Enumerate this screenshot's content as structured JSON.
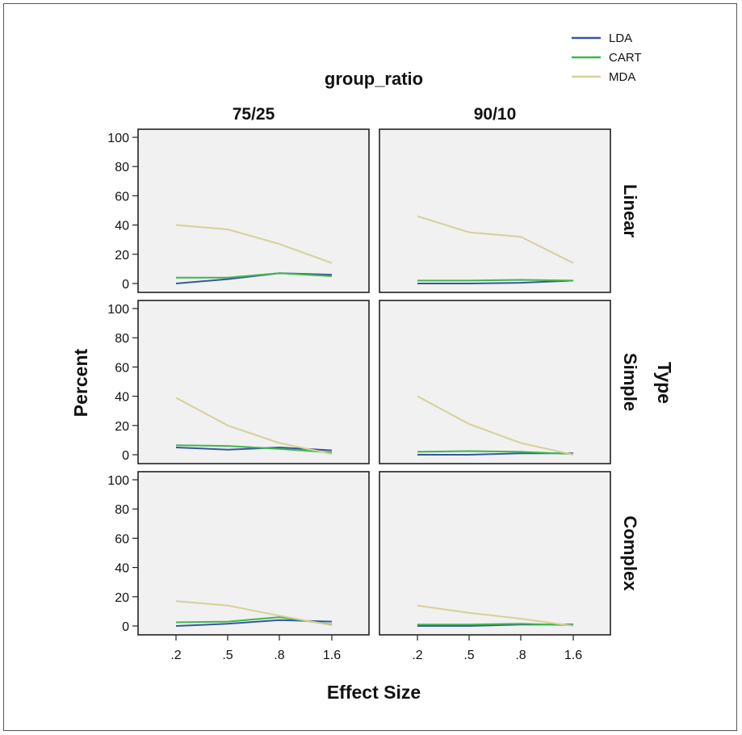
{
  "chart_data": {
    "type": "line",
    "title": "group_ratio",
    "xlabel": "Effect Size",
    "ylabel": "Percent",
    "row_facet_label": "Type",
    "col_facets": [
      "75/25",
      "90/10"
    ],
    "row_facets": [
      "Linear",
      "Simple",
      "Complex"
    ],
    "categories": [
      ".2",
      ".5",
      ".8",
      "1.6"
    ],
    "yticks": [
      "0",
      "20",
      "40",
      "60",
      "80",
      "100"
    ],
    "ylim": [
      0,
      100
    ],
    "legend_position": "top-right",
    "grid": false,
    "panel_background": "#f0f1f0",
    "series_styles": [
      {
        "name": "LDA",
        "color": "#3a55a0"
      },
      {
        "name": "CART",
        "color": "#3cb84a"
      },
      {
        "name": "MDA",
        "color": "#d8cf9a"
      }
    ],
    "panels": [
      {
        "col": "75/25",
        "row": "Linear",
        "series": [
          {
            "name": "LDA",
            "values": [
              0,
              3,
              7,
              6
            ]
          },
          {
            "name": "CART",
            "values": [
              4,
              4,
              7,
              5
            ]
          },
          {
            "name": "MDA",
            "values": [
              40,
              37,
              27,
              14
            ]
          }
        ]
      },
      {
        "col": "90/10",
        "row": "Linear",
        "series": [
          {
            "name": "LDA",
            "values": [
              0,
              0,
              0.5,
              2
            ]
          },
          {
            "name": "CART",
            "values": [
              2,
              2,
              2.5,
              2
            ]
          },
          {
            "name": "MDA",
            "values": [
              46,
              35,
              32,
              14
            ]
          }
        ]
      },
      {
        "col": "75/25",
        "row": "Simple",
        "series": [
          {
            "name": "LDA",
            "values": [
              5,
              3.5,
              5,
              3
            ]
          },
          {
            "name": "CART",
            "values": [
              6.5,
              6,
              4,
              1.5
            ]
          },
          {
            "name": "MDA",
            "values": [
              39,
              20,
              8,
              0.5
            ]
          }
        ]
      },
      {
        "col": "90/10",
        "row": "Simple",
        "series": [
          {
            "name": "LDA",
            "values": [
              0,
              0,
              1,
              1
            ]
          },
          {
            "name": "CART",
            "values": [
              2,
              2.5,
              2,
              0.5
            ]
          },
          {
            "name": "MDA",
            "values": [
              40,
              21,
              8,
              0
            ]
          }
        ]
      },
      {
        "col": "75/25",
        "row": "Complex",
        "series": [
          {
            "name": "LDA",
            "values": [
              0,
              1.5,
              4,
              3
            ]
          },
          {
            "name": "CART",
            "values": [
              2.5,
              3,
              6,
              1
            ]
          },
          {
            "name": "MDA",
            "values": [
              17,
              14,
              7,
              0.5
            ]
          }
        ]
      },
      {
        "col": "90/10",
        "row": "Complex",
        "series": [
          {
            "name": "LDA",
            "values": [
              0,
              0,
              1,
              1
            ]
          },
          {
            "name": "CART",
            "values": [
              1,
              1,
              1.5,
              0.5
            ]
          },
          {
            "name": "MDA",
            "values": [
              14,
              9,
              5,
              0
            ]
          }
        ]
      }
    ]
  }
}
